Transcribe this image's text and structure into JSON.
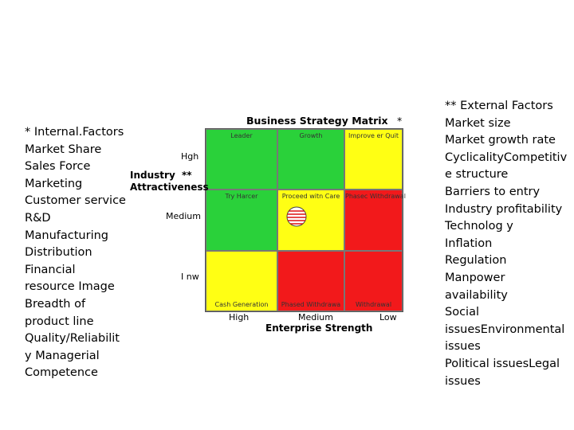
{
  "internal_factors": {
    "lines": [
      "* Internal.Factors",
      "Market Share",
      "Sales Force",
      "Marketing",
      "Customer service",
      "R&D",
      "Manufacturing",
      "Distribution",
      "Financial",
      "resource Image",
      "Breadth of",
      "product line",
      "Quality/Reliabilit",
      "y Managerial",
      "Competence"
    ]
  },
  "external_factors": {
    "lines": [
      "** External Factors",
      "Market size",
      "Market growth rate",
      "CyclicalityCompetitiv",
      "e structure",
      "Barriers to entry",
      "Industry profitability",
      "Technolog y",
      "Inflation",
      "Regulation",
      "Manpower",
      "availability",
      "Social",
      "issuesEnvironmental",
      "issues",
      "Political issuesLegal",
      "issues"
    ]
  },
  "matrix": {
    "title": "Business Strategy Matrix",
    "title_marker": "*",
    "y_axis": {
      "title_line1": "Industry",
      "title_line2": "Attractiveness",
      "marker": "**",
      "ticks": [
        "Hgh",
        "Medium",
        "I nw"
      ]
    },
    "x_axis": {
      "title": "Enterprise Strength",
      "ticks": [
        "High",
        "Medium",
        "Low"
      ]
    },
    "cells": [
      {
        "label": "Leader",
        "color": "#2ad13a",
        "label_position": "top"
      },
      {
        "label": "Growth",
        "color": "#2ad13a",
        "label_position": "top"
      },
      {
        "label": "Improve er Quit",
        "color": "#ffff14",
        "label_position": "top"
      },
      {
        "label": "Try Harcer",
        "color": "#2ad13a",
        "label_position": "top"
      },
      {
        "label": "Proceed witn Care",
        "color": "#ffff14",
        "label_position": "top"
      },
      {
        "label": "Phasec Withdrawal",
        "color": "#f2191b",
        "label_position": "top"
      },
      {
        "label": "Cash Generation",
        "color": "#ffff14",
        "label_position": "bottom"
      },
      {
        "label": "Phased Withdrawa",
        "color": "#f2191b",
        "label_position": "bottom"
      },
      {
        "label": "Withdrawal",
        "color": "#f2191b",
        "label_position": "bottom"
      }
    ],
    "marker_icon": "striped-circle-icon"
  }
}
